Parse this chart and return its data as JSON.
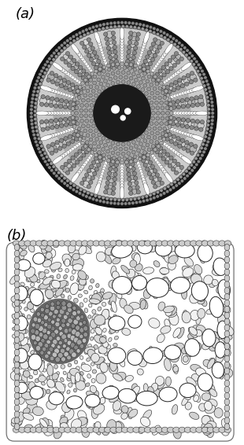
{
  "fig_width": 3.1,
  "fig_height": 5.66,
  "dpi": 100,
  "bg_color": "#ffffff",
  "label_a": "(a)",
  "label_b": "(b)",
  "label_fontsize": 13,
  "outer_ring_color": "#111111",
  "cortex_bg": "#888888",
  "aerenchyma_white": "#ffffff",
  "stele_dark": "#111111",
  "vessel_white": "#ffffff",
  "small_cell_gray": "#bbbbbb",
  "panel_b_bg": "#f5f5f5",
  "cell_edge": "#333333"
}
